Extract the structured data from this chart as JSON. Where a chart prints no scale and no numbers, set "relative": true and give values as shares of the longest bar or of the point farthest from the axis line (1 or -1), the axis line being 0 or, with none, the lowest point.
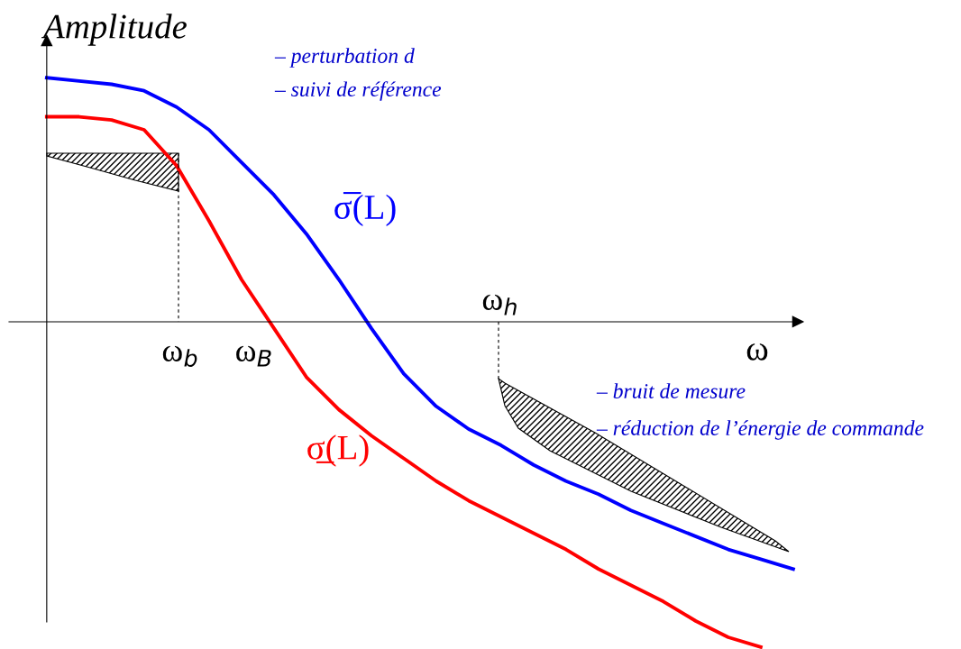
{
  "chart_data": {
    "type": "line",
    "relative": true,
    "ylabel": "Amplitude",
    "xlabel": "ω",
    "categories": [
      null,
      null,
      null,
      null,
      null,
      null,
      null,
      null,
      null,
      null,
      null,
      null,
      null,
      null,
      null,
      null,
      null,
      null,
      null,
      null,
      null,
      null,
      null,
      null
    ],
    "series": [
      {
        "name": "σ̅(L)",
        "color": "#0000ff",
        "values": [
          0.75,
          0.74,
          0.73,
          0.71,
          0.66,
          0.59,
          0.49,
          0.39,
          0.27,
          0.13,
          -0.02,
          -0.16,
          -0.26,
          -0.33,
          -0.38,
          -0.44,
          -0.49,
          -0.53,
          -0.58,
          -0.62,
          -0.66,
          -0.7,
          -0.73,
          -0.76
        ]
      },
      {
        "name": "σ̲(L)",
        "color": "#ff0000",
        "values": [
          0.63,
          0.63,
          0.62,
          0.59,
          0.48,
          0.31,
          0.13,
          -0.02,
          -0.17,
          -0.27,
          -0.35,
          -0.42,
          -0.49,
          -0.55,
          -0.6,
          -0.65,
          -0.7,
          -0.76,
          -0.81,
          -0.86,
          -0.92,
          -0.97,
          -1,
          null
        ]
      }
    ],
    "annotations": [
      "ω$_{b}$",
      "ω$_{B}$",
      "ω$_{h}$",
      "– perturbation d",
      "– suivi de référence",
      "– bruit de mesure",
      "– réduction de l’énergie de commande"
    ]
  }
}
